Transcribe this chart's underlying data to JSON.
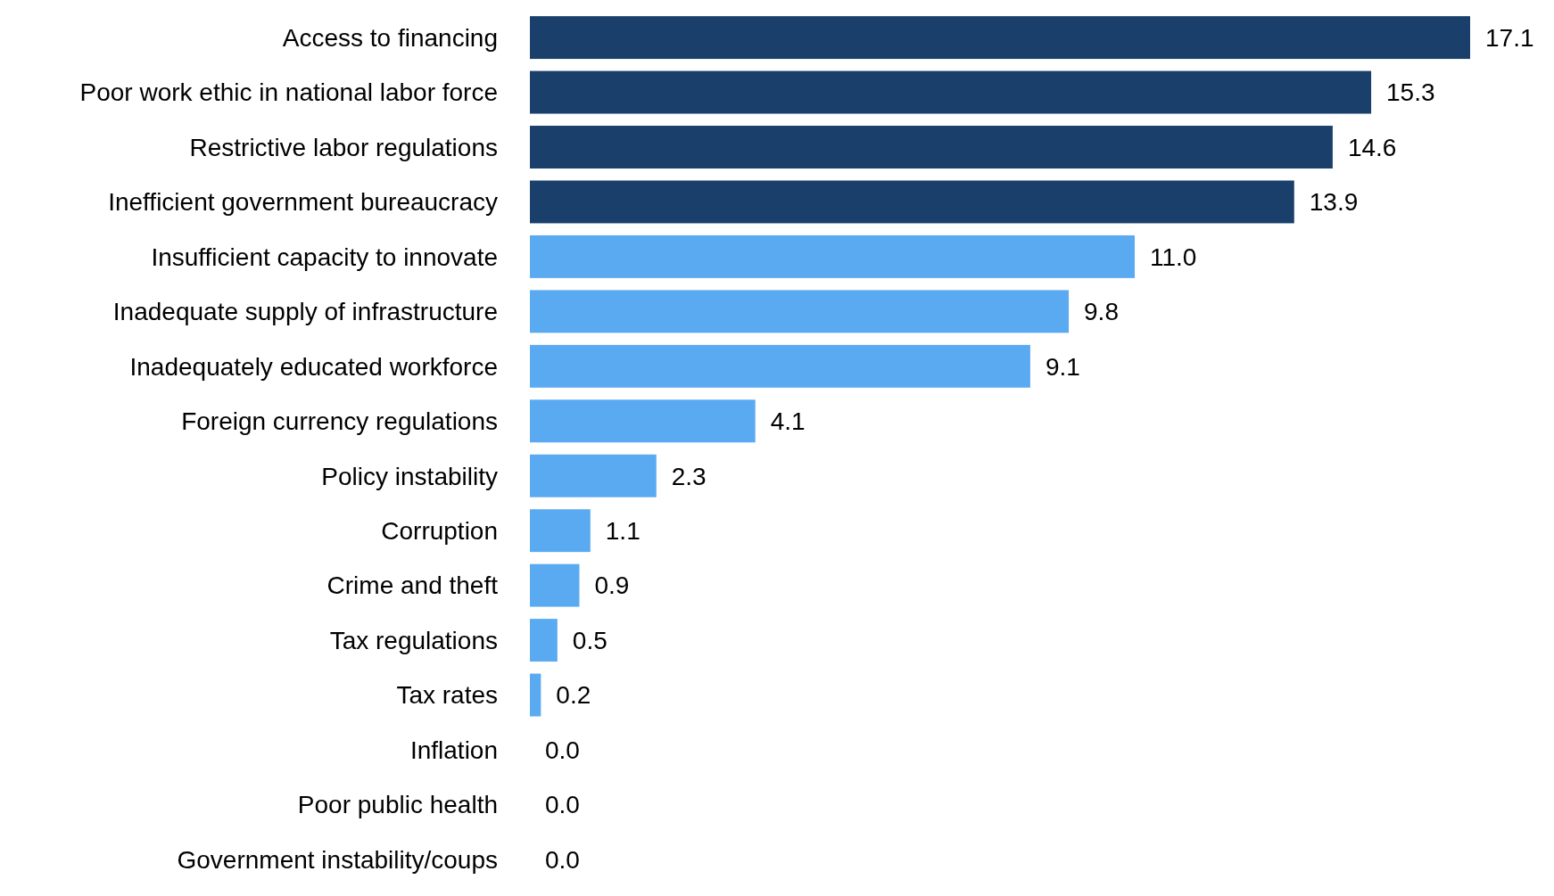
{
  "chart_data": {
    "type": "bar",
    "orientation": "horizontal",
    "categories": [
      "Access to financing",
      "Poor work ethic in national labor force",
      "Restrictive labor regulations",
      "Inefficient government bureaucracy",
      "Insufficient capacity to innovate",
      "Inadequate supply of infrastructure",
      "Inadequately educated workforce",
      "Foreign currency regulations",
      "Policy instability",
      "Corruption",
      "Crime and theft",
      "Tax regulations",
      "Tax rates",
      "Inflation",
      "Poor public health",
      "Government instability/coups"
    ],
    "values": [
      17.1,
      15.3,
      14.6,
      13.9,
      11.0,
      9.8,
      9.1,
      4.1,
      2.3,
      1.1,
      0.9,
      0.5,
      0.2,
      0.0,
      0.0,
      0.0
    ],
    "value_labels": [
      "17.1",
      "15.3",
      "14.6",
      "13.9",
      "11.0",
      "9.8",
      "9.1",
      "4.1",
      "2.3",
      "1.1",
      "0.9",
      "0.5",
      "0.2",
      "0.0",
      "0.0",
      "0.0"
    ],
    "colors": [
      "#1a3f6b",
      "#1a3f6b",
      "#1a3f6b",
      "#1a3f6b",
      "#5aaaf2",
      "#5aaaf2",
      "#5aaaf2",
      "#5aaaf2",
      "#5aaaf2",
      "#5aaaf2",
      "#5aaaf2",
      "#5aaaf2",
      "#5aaaf2",
      "#5aaaf2",
      "#5aaaf2",
      "#5aaaf2"
    ]
  }
}
